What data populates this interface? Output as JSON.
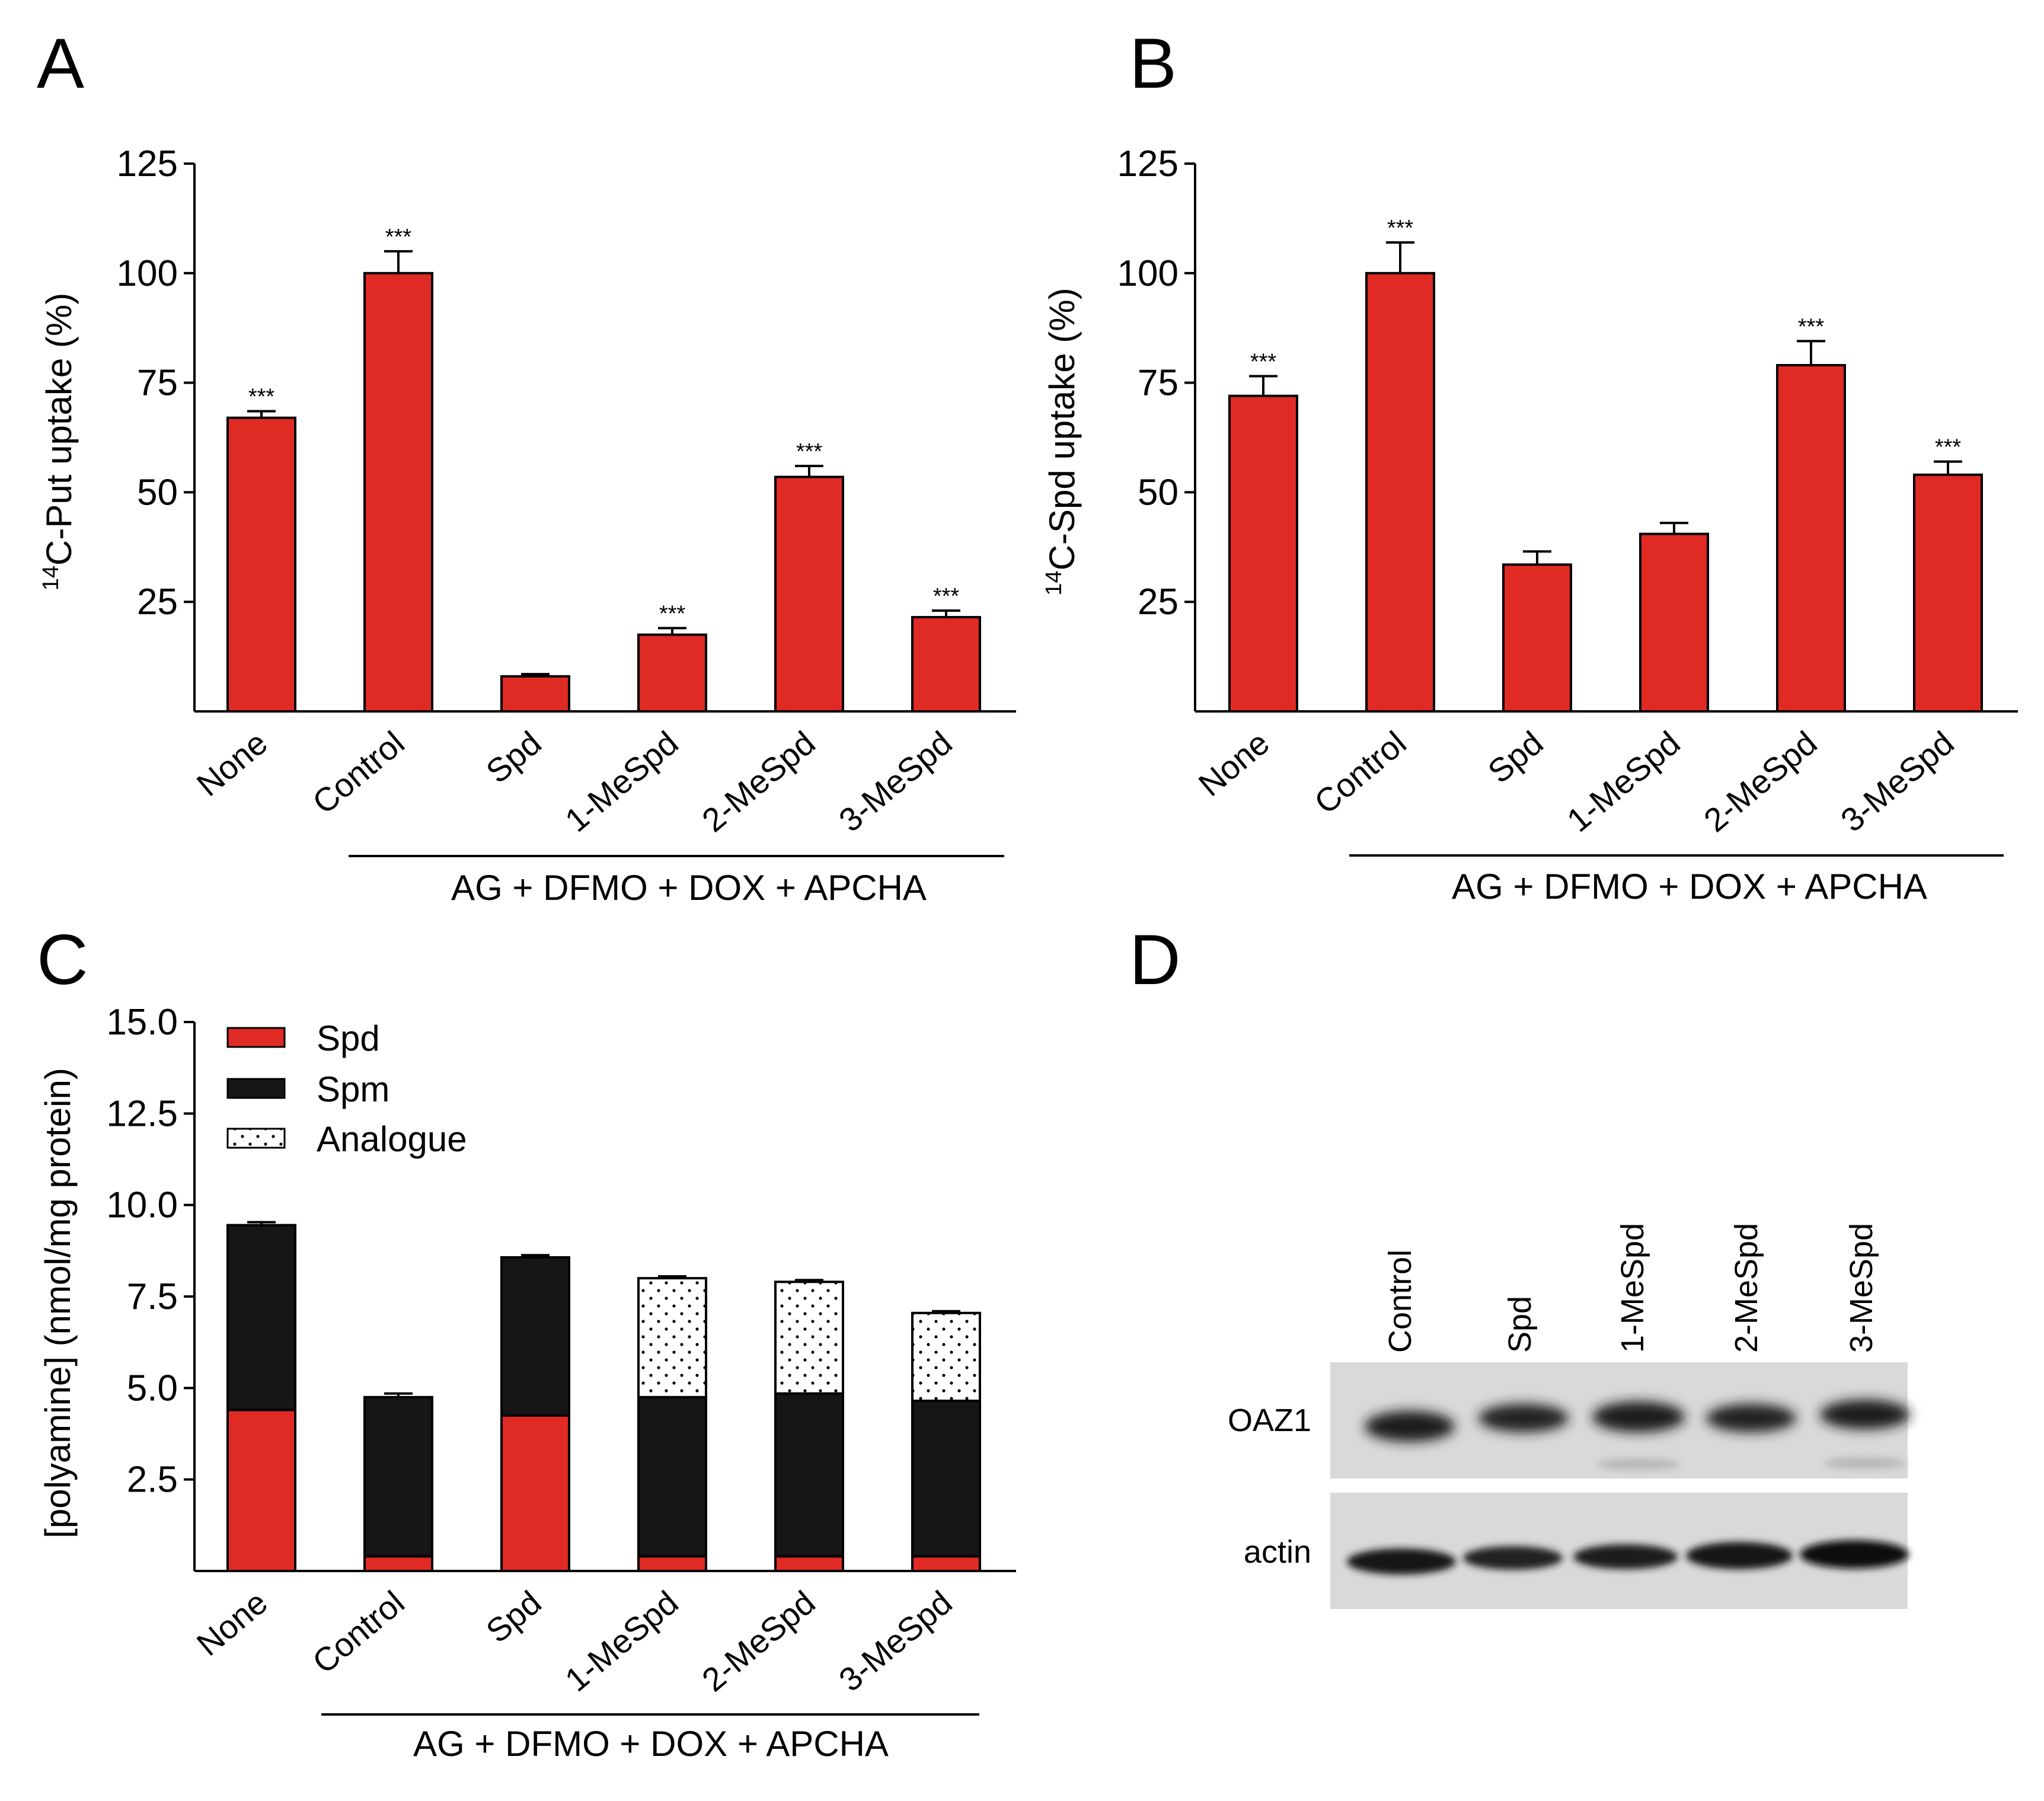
{
  "colors": {
    "spd": "#e02a24",
    "spm": "#161616",
    "analogue": "#ffffff",
    "bar": "#e02a24"
  },
  "panel_letters": [
    "A",
    "B",
    "C",
    "D"
  ],
  "chart_data": [
    {
      "id": "A",
      "type": "bar",
      "ylabel_superscript": "14",
      "ylabel": "C-Put uptake (%)",
      "categories": [
        "None",
        "Control",
        "Spd",
        "1-MeSpd",
        "2-MeSpd",
        "3-MeSpd"
      ],
      "values": [
        67,
        100,
        8,
        17.5,
        53.5,
        21.5
      ],
      "errors": [
        1.5,
        5,
        0.5,
        1.5,
        2.5,
        1.5
      ],
      "significance": [
        "***",
        "***",
        "",
        "***",
        "***",
        "***"
      ],
      "ylim": [
        0,
        125
      ],
      "yticks": [
        25,
        50,
        75,
        100,
        125
      ],
      "treatment_label": "AG + DFMO + DOX + APCHA"
    },
    {
      "id": "B",
      "type": "bar",
      "ylabel_superscript": "14",
      "ylabel": "C-Spd uptake (%)",
      "categories": [
        "None",
        "Control",
        "Spd",
        "1-MeSpd",
        "2-MeSpd",
        "3-MeSpd"
      ],
      "values": [
        72,
        100,
        33.5,
        40.5,
        79,
        54
      ],
      "errors": [
        4.5,
        7,
        3,
        2.5,
        5.5,
        3
      ],
      "significance": [
        "***",
        "***",
        "",
        "",
        "***",
        "***"
      ],
      "ylim": [
        0,
        125
      ],
      "yticks": [
        25,
        50,
        75,
        100,
        125
      ],
      "treatment_label": "AG + DFMO + DOX + APCHA"
    },
    {
      "id": "C",
      "type": "bar",
      "stacked": true,
      "ylabel": "[polyamine] (nmol/mg protein)",
      "categories": [
        "None",
        "Control",
        "Spd",
        "1-MeSpd",
        "2-MeSpd",
        "3-MeSpd"
      ],
      "series": [
        {
          "name": "Spd",
          "values": [
            4.4,
            0.4,
            4.25,
            0.4,
            0.4,
            0.4
          ]
        },
        {
          "name": "Spm",
          "values": [
            5.05,
            4.35,
            4.32,
            4.35,
            4.45,
            4.25
          ]
        },
        {
          "name": "Analogue",
          "values": [
            0,
            0,
            0,
            3.25,
            3.05,
            2.4
          ]
        }
      ],
      "totals": [
        9.45,
        4.75,
        8.57,
        8.0,
        7.9,
        7.05
      ],
      "errors": [
        0.08,
        0.1,
        0.06,
        0.05,
        0.05,
        0.05
      ],
      "ylim": [
        0,
        15
      ],
      "yticks": [
        "2.5",
        "5.0",
        "7.5",
        "10.0",
        "12.5",
        "15.0"
      ],
      "legend": [
        "Spd",
        "Spm",
        "Analogue"
      ],
      "legend_position": "top-left",
      "treatment_label": "AG + DFMO + DOX + APCHA"
    }
  ],
  "blot": {
    "lanes": [
      "Control",
      "Spd",
      "1-MeSpd",
      "2-MeSpd",
      "3-MeSpd"
    ],
    "rows": [
      "OAZ1",
      "actin"
    ]
  }
}
